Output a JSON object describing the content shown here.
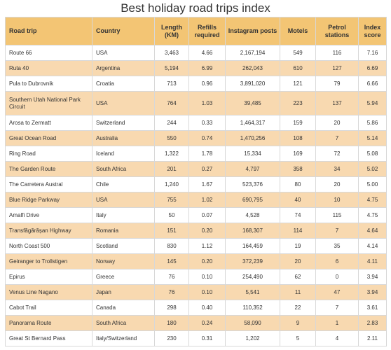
{
  "title": "Best holiday road trips index",
  "columns": [
    "Road trip",
    "Country",
    "Length (KM)",
    "Refills required",
    "Instagram posts",
    "Motels",
    "Petrol stations",
    "Index score"
  ],
  "rows": [
    [
      "Route 66",
      "USA",
      "3,463",
      "4.66",
      "2,167,194",
      "549",
      "116",
      "7.16"
    ],
    [
      "Ruta 40",
      "Argentina",
      "5,194",
      "6.99",
      "262,043",
      "610",
      "127",
      "6.69"
    ],
    [
      "Pula to Dubrovnik",
      "Croatia",
      "713",
      "0.96",
      "3,891,020",
      "121",
      "79",
      "6.66"
    ],
    [
      "Southern Utah National Park Circuit",
      "USA",
      "764",
      "1.03",
      "39,485",
      "223",
      "137",
      "5.94"
    ],
    [
      "Arosa to Zermatt",
      "Switzerland",
      "244",
      "0.33",
      "1,464,317",
      "159",
      "20",
      "5.86"
    ],
    [
      "Great Ocean Road",
      "Australia",
      "550",
      "0.74",
      "1,470,256",
      "108",
      "7",
      "5.14"
    ],
    [
      "Ring Road",
      "Iceland",
      "1,322",
      "1.78",
      "15,334",
      "169",
      "72",
      "5.08"
    ],
    [
      "The Garden Route",
      "South Africa",
      "201",
      "0.27",
      "4,797",
      "358",
      "34",
      "5.02"
    ],
    [
      "The Carretera Austral",
      "Chile",
      "1,240",
      "1.67",
      "523,376",
      "80",
      "20",
      "5.00"
    ],
    [
      "Blue Ridge Parkway",
      "USA",
      "755",
      "1.02",
      "690,795",
      "40",
      "10",
      "4.75"
    ],
    [
      "Amalfi Drive",
      "Italy",
      "50",
      "0.07",
      "4,528",
      "74",
      "115",
      "4.75"
    ],
    [
      "Transfăgărășan Highway",
      "Romania",
      "151",
      "0.20",
      "168,307",
      "114",
      "7",
      "4.64"
    ],
    [
      "North Coast 500",
      "Scotland",
      "830",
      "1.12",
      "164,459",
      "19",
      "35",
      "4.14"
    ],
    [
      "Geiranger to Trollstigen",
      "Norway",
      "145",
      "0.20",
      "372,239",
      "20",
      "6",
      "4.11"
    ],
    [
      "Epirus",
      "Greece",
      "76",
      "0.10",
      "254,490",
      "62",
      "0",
      "3.94"
    ],
    [
      "Venus Line Nagano",
      "Japan",
      "76",
      "0.10",
      "5,541",
      "11",
      "47",
      "3.94"
    ],
    [
      "Cabot Trail",
      "Canada",
      "298",
      "0.40",
      "110,352",
      "22",
      "7",
      "3.61"
    ],
    [
      "Panorama Route",
      "South Africa",
      "180",
      "0.24",
      "58,090",
      "9",
      "1",
      "2.83"
    ],
    [
      "Great St Bernard Pass",
      "Italy/Switzerland",
      "230",
      "0.31",
      "1,202",
      "5",
      "4",
      "2.11"
    ]
  ]
}
